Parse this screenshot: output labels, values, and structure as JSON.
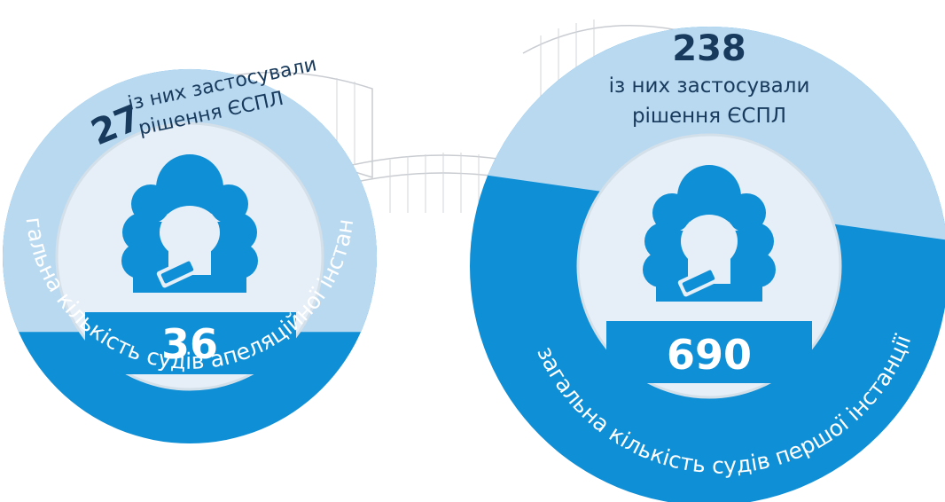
{
  "colors": {
    "light": "#b9d9f1",
    "dark": "#0f8fd6",
    "inner": "#e6eff7",
    "text_dark": "#183a5c",
    "building": "#c9ccd1"
  },
  "chart_data": [
    {
      "type": "pie",
      "total": 36,
      "applied": 27,
      "total_label": "загальна кількість судів апеляційної інстанції",
      "applied_label_line1": "із них застосували",
      "applied_label_line2": "рішення ЄСПЛ"
    },
    {
      "type": "pie",
      "total": 690,
      "applied": 238,
      "total_label": "загальна кількість судів першої інстанції",
      "applied_label_line1": "із них застосували",
      "applied_label_line2": "рішення ЄСПЛ"
    }
  ]
}
